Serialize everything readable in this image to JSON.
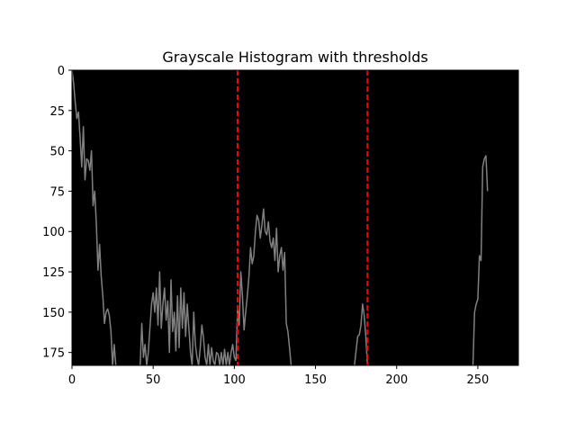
{
  "chart_data": {
    "type": "line",
    "title": "Grayscale Histogram with thresholds",
    "xlabel": "",
    "ylabel": "",
    "xlim": [
      0,
      275
    ],
    "ylim": [
      183,
      0
    ],
    "x_ticks": [
      0,
      50,
      100,
      150,
      200,
      250
    ],
    "y_ticks": [
      0,
      25,
      50,
      75,
      100,
      125,
      150,
      175
    ],
    "grid": false,
    "plot_background": "#000000",
    "series": [
      {
        "color": "#808080",
        "points": [
          [
            0,
            0
          ],
          [
            1,
            8
          ],
          [
            2,
            20
          ],
          [
            3,
            30
          ],
          [
            4,
            26
          ],
          [
            5,
            42
          ],
          [
            6,
            60
          ],
          [
            7,
            35
          ],
          [
            8,
            68
          ],
          [
            9,
            55
          ],
          [
            10,
            56
          ],
          [
            11,
            62
          ],
          [
            12,
            50
          ],
          [
            13,
            84
          ],
          [
            14,
            75
          ],
          [
            15,
            95
          ],
          [
            16,
            124
          ],
          [
            17,
            108
          ],
          [
            18,
            128
          ],
          [
            19,
            140
          ],
          [
            20,
            157
          ],
          [
            21,
            150
          ],
          [
            22,
            148
          ],
          [
            23,
            152
          ],
          [
            24,
            162
          ],
          [
            25,
            183
          ],
          [
            26,
            170
          ],
          [
            27,
            183
          ],
          [
            42,
            183
          ],
          [
            43,
            157
          ],
          [
            44,
            178
          ],
          [
            45,
            170
          ],
          [
            46,
            183
          ],
          [
            47,
            175
          ],
          [
            48,
            160
          ],
          [
            49,
            145
          ],
          [
            50,
            138
          ],
          [
            51,
            150
          ],
          [
            52,
            135
          ],
          [
            53,
            158
          ],
          [
            54,
            125
          ],
          [
            55,
            160
          ],
          [
            56,
            145
          ],
          [
            57,
            135
          ],
          [
            58,
            155
          ],
          [
            59,
            143
          ],
          [
            60,
            175
          ],
          [
            61,
            130
          ],
          [
            62,
            162
          ],
          [
            63,
            150
          ],
          [
            64,
            174
          ],
          [
            65,
            140
          ],
          [
            66,
            172
          ],
          [
            67,
            135
          ],
          [
            68,
            160
          ],
          [
            69,
            138
          ],
          [
            70,
            165
          ],
          [
            71,
            145
          ],
          [
            72,
            160
          ],
          [
            73,
            175
          ],
          [
            74,
            183
          ],
          [
            75,
            150
          ],
          [
            76,
            170
          ],
          [
            77,
            178
          ],
          [
            78,
            183
          ],
          [
            79,
            172
          ],
          [
            80,
            158
          ],
          [
            81,
            166
          ],
          [
            82,
            178
          ],
          [
            83,
            183
          ],
          [
            84,
            170
          ],
          [
            85,
            183
          ],
          [
            86,
            172
          ],
          [
            87,
            180
          ],
          [
            88,
            183
          ],
          [
            89,
            175
          ],
          [
            90,
            176
          ],
          [
            91,
            183
          ],
          [
            92,
            175
          ],
          [
            93,
            183
          ],
          [
            94,
            173
          ],
          [
            95,
            183
          ],
          [
            96,
            175
          ],
          [
            97,
            183
          ],
          [
            98,
            175
          ],
          [
            99,
            170
          ],
          [
            100,
            178
          ],
          [
            101,
            180
          ],
          [
            102,
            147
          ],
          [
            103,
            158
          ],
          [
            104,
            125
          ],
          [
            105,
            140
          ],
          [
            106,
            161
          ],
          [
            107,
            150
          ],
          [
            108,
            140
          ],
          [
            109,
            128
          ],
          [
            110,
            110
          ],
          [
            111,
            120
          ],
          [
            112,
            115
          ],
          [
            113,
            100
          ],
          [
            114,
            90
          ],
          [
            115,
            93
          ],
          [
            116,
            104
          ],
          [
            117,
            96
          ],
          [
            118,
            86
          ],
          [
            119,
            100
          ],
          [
            120,
            102
          ],
          [
            121,
            94
          ],
          [
            122,
            106
          ],
          [
            123,
            110
          ],
          [
            124,
            104
          ],
          [
            125,
            118
          ],
          [
            126,
            98
          ],
          [
            127,
            125
          ],
          [
            128,
            115
          ],
          [
            129,
            110
          ],
          [
            130,
            124
          ],
          [
            131,
            113
          ],
          [
            132,
            157
          ],
          [
            133,
            162
          ],
          [
            134,
            172
          ],
          [
            135,
            183
          ],
          [
            174,
            183
          ],
          [
            175,
            174
          ],
          [
            176,
            165
          ],
          [
            177,
            164
          ],
          [
            178,
            158
          ],
          [
            179,
            145
          ],
          [
            180,
            152
          ],
          [
            181,
            165
          ],
          [
            182,
            183
          ],
          [
            247,
            183
          ],
          [
            248,
            150
          ],
          [
            249,
            145
          ],
          [
            250,
            142
          ],
          [
            251,
            115
          ],
          [
            252,
            118
          ],
          [
            253,
            60
          ],
          [
            254,
            55
          ],
          [
            255,
            53
          ],
          [
            256,
            75
          ]
        ]
      }
    ],
    "thresholds": [
      {
        "x": 102,
        "color": "#ff0000",
        "style": "dashed"
      },
      {
        "x": 182,
        "color": "#ff0000",
        "style": "dashed"
      }
    ]
  }
}
